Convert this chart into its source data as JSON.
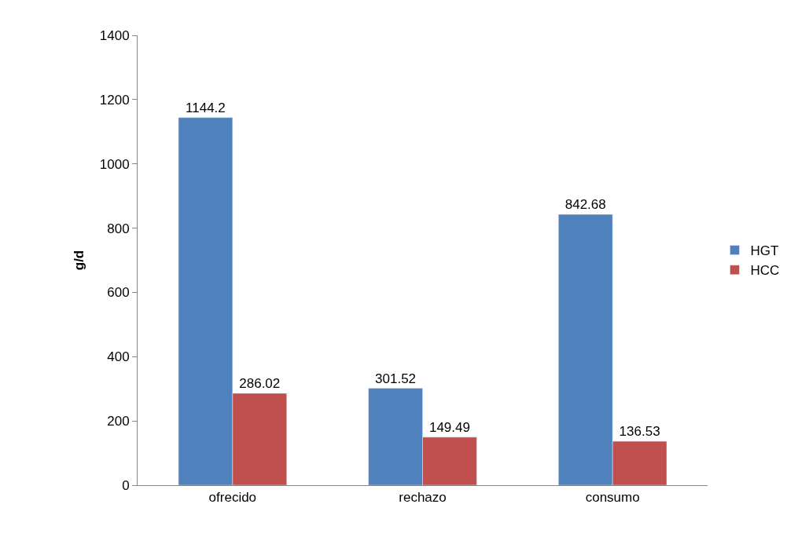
{
  "chart_data": {
    "type": "bar",
    "ylabel": "g/d",
    "categories": [
      "ofrecido",
      "rechazo",
      "consumo"
    ],
    "series": [
      {
        "name": "HGT",
        "color": "#4f81bd",
        "values": [
          1144.2,
          301.52,
          842.68
        ]
      },
      {
        "name": "HCC",
        "color": "#c0504d",
        "values": [
          286.02,
          149.49,
          136.53
        ]
      }
    ],
    "ylim": [
      0,
      1400
    ],
    "yticks": [
      0,
      200,
      400,
      600,
      800,
      1000,
      1200,
      1400
    ],
    "grid": false,
    "legend": "right",
    "data_labels": true
  }
}
